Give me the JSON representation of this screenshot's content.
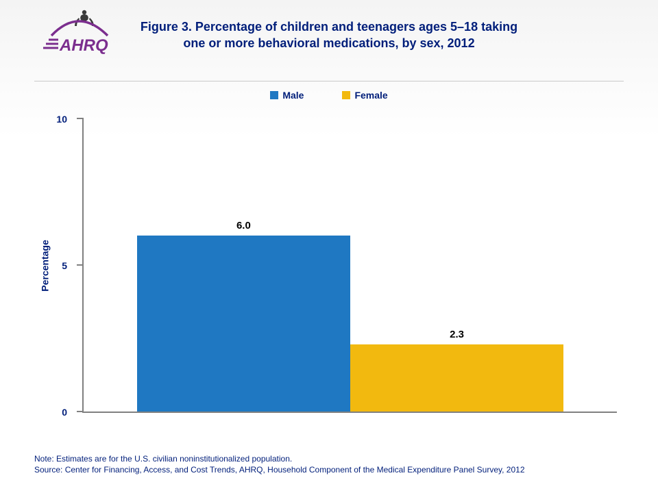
{
  "header": {
    "title_line1": "Figure 3. Percentage of children and teenagers ages 5–18 taking",
    "title_line2": "one or more behavioral medications, by sex, 2012",
    "title_color": "#001e7a",
    "title_fontsize": 18
  },
  "logo": {
    "text": "AHRQ",
    "text_color": "#7b2e8e",
    "arc_color": "#7b2e8e",
    "figure_color": "#3a3a3a"
  },
  "chart": {
    "type": "bar",
    "ylabel": "Percentage",
    "ylim": [
      0,
      10
    ],
    "yticks": [
      0,
      5,
      10
    ],
    "axis_color": "#808080",
    "label_color": "#001e7a",
    "label_fontsize": 14,
    "value_label_fontsize": 15,
    "value_label_color": "#000000",
    "bar_gap_percent": 0,
    "left_pad_percent": 10,
    "right_pad_percent": 10,
    "series": [
      {
        "name": "Male",
        "value": 6.0,
        "label": "6.0",
        "color": "#1f78c2"
      },
      {
        "name": "Female",
        "value": 2.3,
        "label": "2.3",
        "color": "#f2b90f"
      }
    ]
  },
  "legend": {
    "items": [
      {
        "label": "Male",
        "color": "#1f78c2"
      },
      {
        "label": "Female",
        "color": "#f2b90f"
      }
    ],
    "text_color": "#001e7a",
    "fontsize": 14
  },
  "footnotes": {
    "note": "Note: Estimates are for the U.S. civilian noninstitutionalized population.",
    "source": "Source: Center for Financing, Access, and Cost Trends, AHRQ, Household Component of the Medical Expenditure Panel Survey, 2012",
    "color": "#001e7a",
    "fontsize": 12
  }
}
